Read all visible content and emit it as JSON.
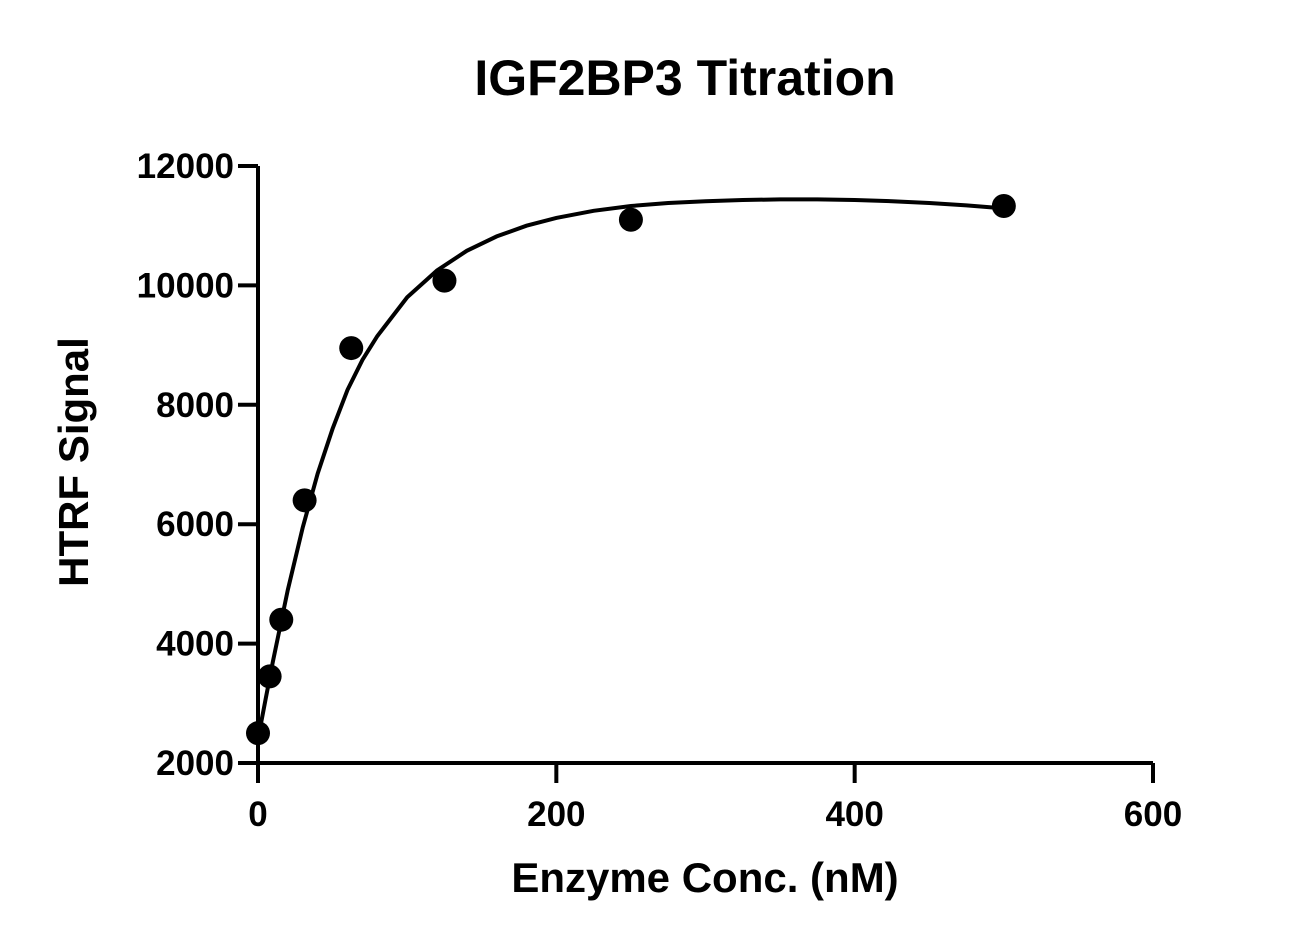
{
  "chart_data": {
    "type": "scatter",
    "title": "IGF2BP3 Titration",
    "xlabel": "Enzyme Conc. (nM)",
    "ylabel": "HTRF Signal",
    "xlim": [
      0,
      600
    ],
    "ylim": [
      2000,
      12000
    ],
    "x_ticks": [
      0,
      200,
      400,
      600
    ],
    "y_ticks": [
      2000,
      4000,
      6000,
      8000,
      10000,
      12000
    ],
    "grid": false,
    "legend": "none",
    "series": [
      {
        "x": [
          0,
          7.8,
          15.6,
          31.25,
          62.5,
          125,
          250,
          500
        ],
        "y": [
          2500,
          3450,
          4400,
          6400,
          8950,
          10080,
          11100,
          11330
        ],
        "marker": "filled-circle",
        "color": "#000000"
      }
    ],
    "fit_curve": {
      "x": [
        0,
        5,
        10,
        20,
        30,
        40,
        50,
        60,
        70,
        80,
        100,
        120,
        140,
        160,
        180,
        200,
        225,
        250,
        275,
        300,
        325,
        350,
        375,
        400,
        425,
        450,
        475,
        500
      ],
      "y": [
        2400,
        3060,
        3700,
        4900,
        5950,
        6850,
        7600,
        8250,
        8750,
        9150,
        9800,
        10250,
        10580,
        10820,
        11000,
        11130,
        11250,
        11330,
        11380,
        11410,
        11430,
        11440,
        11440,
        11430,
        11410,
        11380,
        11340,
        11290
      ],
      "color": "#000000"
    }
  }
}
